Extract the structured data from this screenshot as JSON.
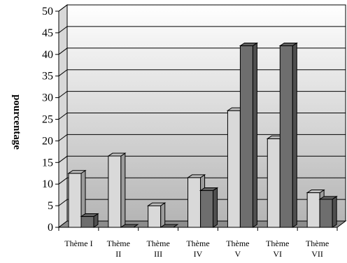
{
  "chart_data": {
    "type": "bar",
    "title": "",
    "xlabel": "",
    "ylabel": "pourcentage",
    "ylim": [
      0,
      50
    ],
    "y_ticks": [
      "0",
      "5",
      "10",
      "15",
      "20",
      "25",
      "30",
      "35",
      "40",
      "45",
      "50"
    ],
    "grid": true,
    "legend": "none",
    "categories": [
      [
        "Thème I"
      ],
      [
        "Thème",
        "II"
      ],
      [
        "Thème",
        "III"
      ],
      [
        "Thème",
        "IV"
      ],
      [
        "Thème",
        "V"
      ],
      [
        "Thème",
        "VI"
      ],
      [
        "Thème",
        "VII"
      ]
    ],
    "series": [
      {
        "values": [
          12.5,
          16.5,
          5,
          11.5,
          27,
          20.5,
          8
        ],
        "color": "#d9d9d9"
      },
      {
        "values": [
          2.5,
          0,
          0,
          8.5,
          42,
          42,
          6.5
        ],
        "color": "#6e6e6e"
      }
    ]
  }
}
